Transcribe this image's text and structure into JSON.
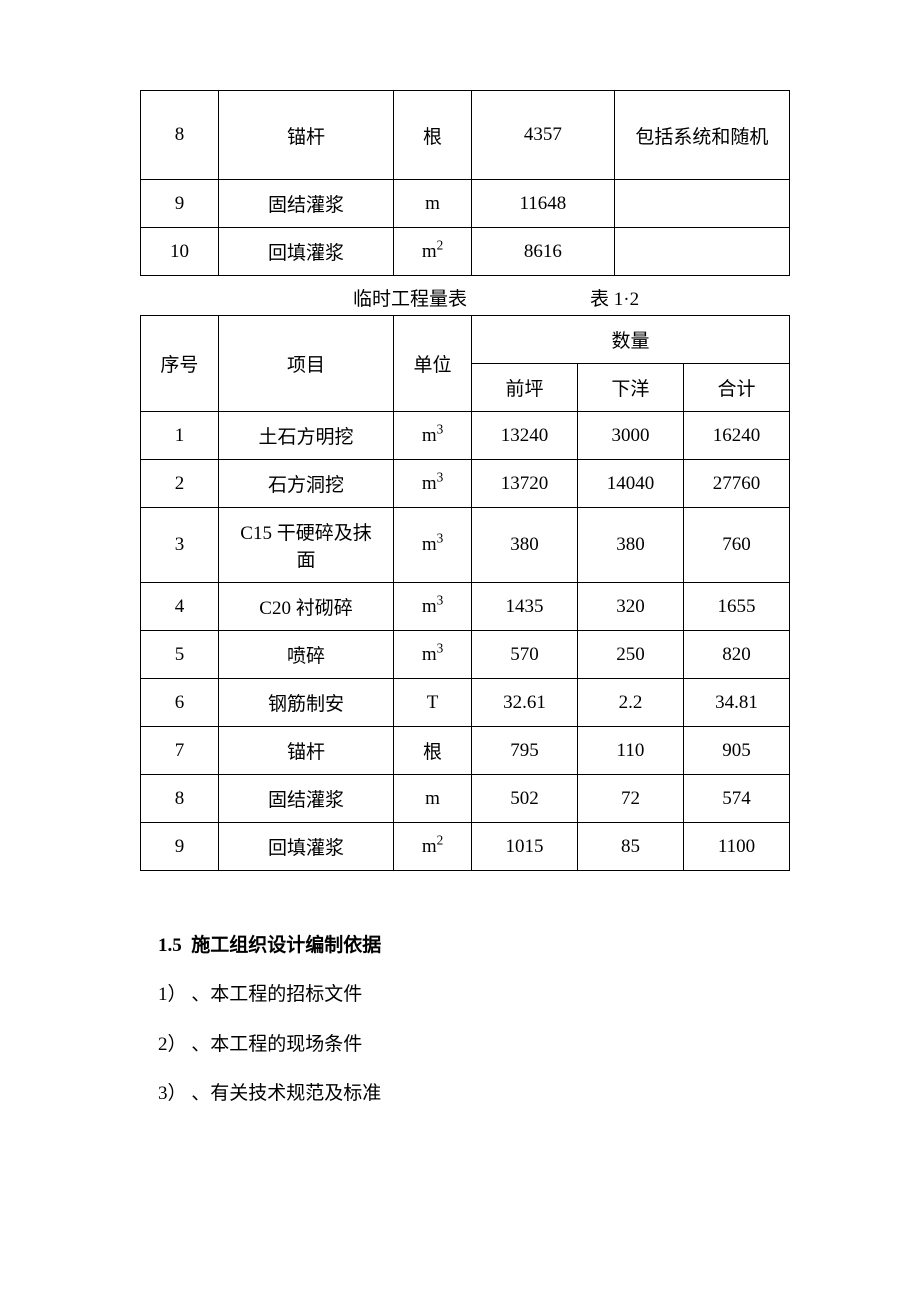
{
  "table1": {
    "columns_width": [
      "12%",
      "27%",
      "12%",
      "22%",
      "27%"
    ],
    "rows": [
      {
        "no": "8",
        "item": "锚杆",
        "unit": "根",
        "qty": "4357",
        "note": "包括系统和随机",
        "tall": true
      },
      {
        "no": "9",
        "item": "固结灌浆",
        "unit": "m",
        "qty": "11648",
        "note": ""
      },
      {
        "no": "10",
        "item": "回填灌浆",
        "unit": "m2_sup",
        "qty": "8616",
        "note": ""
      }
    ]
  },
  "table2_caption": {
    "title": "临时工程量表",
    "label": "表 1·2"
  },
  "table2": {
    "columns_width": [
      "12%",
      "27%",
      "12%",
      "16.33%",
      "16.33%",
      "16.34%"
    ],
    "header": {
      "no": "序号",
      "item": "项目",
      "unit": "单位",
      "qty_group": "数量",
      "qian": "前坪",
      "xia": "下洋",
      "total": "合计"
    },
    "rows": [
      {
        "no": "1",
        "item": "土石方明挖",
        "unit": "m3_sup",
        "qian": "13240",
        "xia": "3000",
        "total": "16240"
      },
      {
        "no": "2",
        "item": "石方洞挖",
        "unit": "m3_sup",
        "qian": "13720",
        "xia": "14040",
        "total": "27760"
      },
      {
        "no": "3",
        "item": "C15 干硬碎及抹\n面",
        "unit": "m3_sup",
        "qian": "380",
        "xia": "380",
        "total": "760"
      },
      {
        "no": "4",
        "item": "C20 衬砌碎",
        "unit": "m3_sup",
        "qian": "1435",
        "xia": "320",
        "total": "1655"
      },
      {
        "no": "5",
        "item": "喷碎",
        "unit": "m3_sup",
        "qian": "570",
        "xia": "250",
        "total": "820"
      },
      {
        "no": "6",
        "item": "钢筋制安",
        "unit": "T",
        "qian": "32.61",
        "xia": "2.2",
        "total": "34.81"
      },
      {
        "no": "7",
        "item": "锚杆",
        "unit": "根",
        "qian": "795",
        "xia": "110",
        "total": "905"
      },
      {
        "no": "8",
        "item": "固结灌浆",
        "unit": "m",
        "qian": "502",
        "xia": "72",
        "total": "574"
      },
      {
        "no": "9",
        "item": "回填灌浆",
        "unit": "m2_sup",
        "qian": "1015",
        "xia": "85",
        "total": "1100"
      }
    ]
  },
  "section": {
    "heading_no": "1.5",
    "heading_text": "施工组织设计编制依据",
    "items": [
      "1） 、本工程的招标文件",
      "2） 、本工程的现场条件",
      "3） 、有关技术规范及标准"
    ]
  }
}
